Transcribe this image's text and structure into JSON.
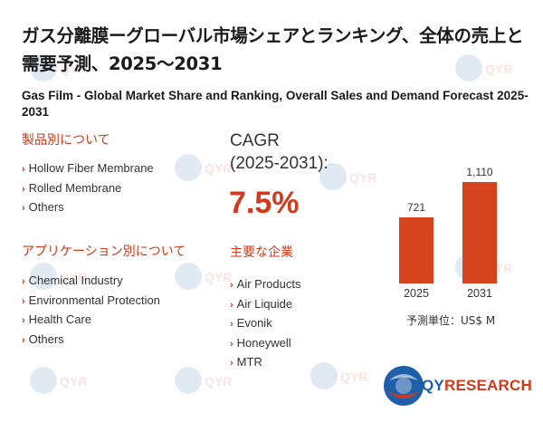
{
  "title_jp": "ガス分離膜ーグローバル市場シェアとランキング、全体の売上と需要予測、2025～2031",
  "title_en": "Gas Film - Global Market Share and Ranking, Overall Sales and Demand Forecast 2025-2031",
  "product_section": {
    "heading": "製品別について",
    "items": [
      "Hollow Fiber Membrane",
      "Rolled Membrane",
      "Others"
    ]
  },
  "application_section": {
    "heading": "アプリケーション別について",
    "items": [
      "Chemical Industry",
      "Environmental Protection",
      "Health Care",
      "Others"
    ]
  },
  "cagr": {
    "label": "CAGR",
    "period": "(2025-2031):",
    "value": "7.5%"
  },
  "companies": {
    "heading": "主要な企業",
    "items": [
      "Air Products",
      "Air Liquide",
      "Evonik",
      "Honeywell",
      "MTR"
    ]
  },
  "chart_data": {
    "type": "bar",
    "categories": [
      "2025",
      "2031"
    ],
    "values": [
      721,
      1110
    ],
    "value_labels": [
      "721",
      "1,110"
    ],
    "unit_label": "予測単位：US$ M",
    "color": "#d5441f"
  },
  "logo": {
    "text_main": "QY",
    "text_accent": "RESEARCH"
  },
  "colors": {
    "accent": "#d13a1c",
    "bar": "#d5441f",
    "logo_blue": "#1f5ea8"
  }
}
